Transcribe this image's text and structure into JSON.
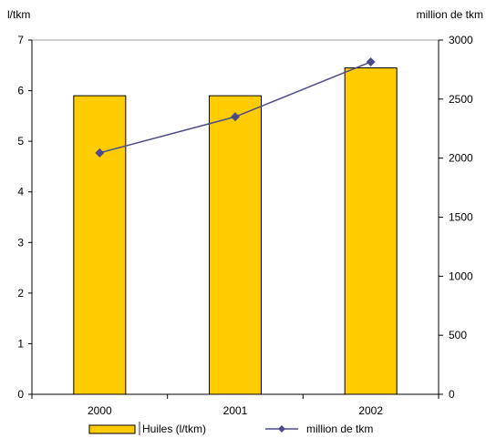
{
  "chart_data": {
    "type": "bar",
    "categories": [
      "2000",
      "2001",
      "2002"
    ],
    "series": [
      {
        "name": "Huiles (l/tkm)",
        "type": "bar",
        "axis": "left",
        "values": [
          5.9,
          5.9,
          6.45
        ],
        "color": "#FFCC00"
      },
      {
        "name": "million de tkm",
        "type": "line",
        "axis": "right",
        "values": [
          2045,
          2350,
          2815
        ],
        "color": "#4B4B8C"
      }
    ],
    "y_left": {
      "label": "l/tkm",
      "ylim": [
        0,
        7
      ],
      "ticks": [
        "0",
        "1",
        "2",
        "3",
        "4",
        "5",
        "6",
        "7"
      ]
    },
    "y_right": {
      "label": "million de tkm",
      "ylim": [
        0,
        3000
      ],
      "ticks": [
        "0",
        "500",
        "1000",
        "1500",
        "2000",
        "2500",
        "3000"
      ]
    },
    "legend": {
      "placement": "bottom",
      "entries": [
        "Huiles (l/tkm)",
        "million de tkm"
      ]
    },
    "grid": false
  }
}
